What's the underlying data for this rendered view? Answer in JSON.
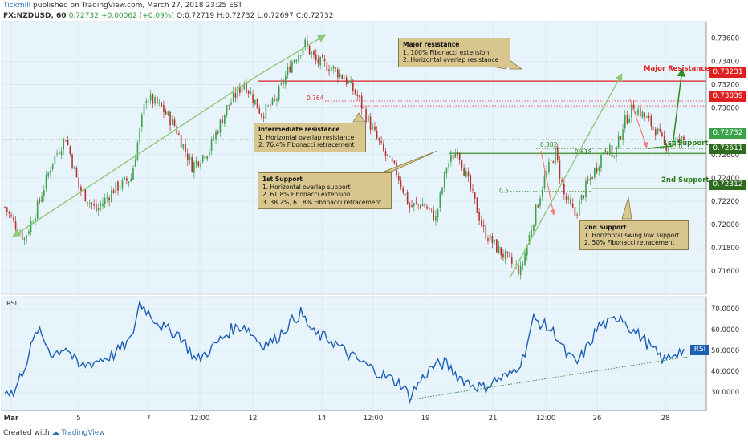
{
  "header": {
    "author": "Tickmill",
    "published": "published on TradingView.com, March 27, 2018 23:25 EST",
    "symbol": "FX:NZDUSD, 60",
    "last": "0.72732",
    "change": "+0.00062 (+0.09%)",
    "open": "O:0.72719",
    "high": "H:0.72732",
    "low": "L:0.72697",
    "close": "C:0.72732"
  },
  "footer": {
    "created_with": "Created with",
    "brand": "TradingView"
  },
  "colors": {
    "background": "#e8f4fb",
    "candle_up": "#3aa24a",
    "candle_down": "#b3342f",
    "rsi_line": "#1f5fb5",
    "resistance": "#e02020",
    "support": "#3c8c28",
    "trend": "#8fc97a",
    "annotation_box": "#d8c68e"
  },
  "annotations": {
    "major_res_box": {
      "title": "Major resistance",
      "lines": [
        "1. 100% Fibonacci extension",
        "2. Horizontal overlap resistance"
      ]
    },
    "intermediate_box": {
      "title": "Intermediate resistance",
      "lines": [
        "1. Horizontal overlap resistance",
        "2. 76.4% Fibonacci retracement"
      ]
    },
    "first_support_box": {
      "title": "1st Support",
      "lines": [
        "1. Horizontal overlap support",
        "2. 61.8% Fibonacci extension",
        "3. 38.2%, 61.8% Fibonacci retracement"
      ]
    },
    "second_support_box": {
      "title": "2nd Support",
      "lines": [
        "1. Horizontal swing low support",
        "2. 50% Fibonacci retracement"
      ]
    }
  },
  "levels": {
    "major_resistance": {
      "label": "Major Resistance",
      "price": "0.73231"
    },
    "intermediate_resistance": {
      "price": "0.73039"
    },
    "current": {
      "price": "0.72732"
    },
    "first_support": {
      "label": "1st Support",
      "price": "0.72611"
    },
    "second_support": {
      "label": "2nd Support",
      "price": "0.72312"
    }
  },
  "fib_labels": {
    "f764": "0.764",
    "f382": "0.382",
    "f618": "0.618",
    "f5": "0.5"
  },
  "rsi_label": "RSI",
  "rsi_badge": "RSI",
  "chart_data": [
    {
      "type": "candlestick",
      "title": "FX:NZDUSD, 60",
      "x_ticks": [
        "Mar",
        "5",
        "7",
        "12:00",
        "12",
        "14",
        "12:00",
        "19",
        "21",
        "12:00",
        "26",
        "28"
      ],
      "ylim": [
        0.7145,
        0.7372
      ],
      "y_ticks": [
        "0.73600",
        "0.73400",
        "0.73200",
        "0.73000",
        "0.72800",
        "0.72600",
        "0.72400",
        "0.72200",
        "0.72000",
        "0.71800",
        "0.71600"
      ],
      "anchors": [
        [
          0,
          0.7215
        ],
        [
          3,
          0.7205
        ],
        [
          9,
          0.7188
        ],
        [
          15,
          0.7215
        ],
        [
          22,
          0.7255
        ],
        [
          28,
          0.7275
        ],
        [
          34,
          0.7232
        ],
        [
          42,
          0.7212
        ],
        [
          50,
          0.723
        ],
        [
          58,
          0.724
        ],
        [
          65,
          0.731
        ],
        [
          72,
          0.73
        ],
        [
          78,
          0.7285
        ],
        [
          86,
          0.725
        ],
        [
          94,
          0.7265
        ],
        [
          102,
          0.73
        ],
        [
          110,
          0.7322
        ],
        [
          118,
          0.7295
        ],
        [
          124,
          0.7305
        ],
        [
          132,
          0.734
        ],
        [
          138,
          0.7355
        ],
        [
          143,
          0.734
        ],
        [
          150,
          0.7335
        ],
        [
          156,
          0.7326
        ],
        [
          162,
          0.731
        ],
        [
          168,
          0.7285
        ],
        [
          174,
          0.7262
        ],
        [
          180,
          0.7245
        ],
        [
          186,
          0.7215
        ],
        [
          192,
          0.7218
        ],
        [
          198,
          0.7205
        ],
        [
          203,
          0.725
        ],
        [
          208,
          0.7265
        ],
        [
          214,
          0.723
        ],
        [
          220,
          0.7195
        ],
        [
          226,
          0.718
        ],
        [
          232,
          0.7168
        ],
        [
          237,
          0.716
        ],
        [
          243,
          0.7205
        ],
        [
          248,
          0.724
        ],
        [
          253,
          0.7262
        ],
        [
          257,
          0.7225
        ],
        [
          262,
          0.7208
        ],
        [
          267,
          0.7232
        ],
        [
          272,
          0.725
        ],
        [
          276,
          0.7268
        ],
        [
          280,
          0.7258
        ],
        [
          284,
          0.7285
        ],
        [
          289,
          0.7302
        ],
        [
          294,
          0.7292
        ],
        [
          299,
          0.7282
        ],
        [
          303,
          0.7268
        ],
        [
          308,
          0.727
        ],
        [
          312,
          0.7273
        ]
      ],
      "n_candles": 313,
      "annotations": [
        "0.764",
        "0.382",
        "0.618",
        "0.5",
        "Major Resistance",
        "1st Support",
        "2nd Support"
      ]
    },
    {
      "type": "line",
      "title": "RSI",
      "ylim": [
        22,
        75
      ],
      "y_ticks": [
        "70.0000",
        "60.0000",
        "50.0000",
        "40.0000",
        "30.0000"
      ],
      "anchors": [
        [
          0,
          32
        ],
        [
          4,
          29
        ],
        [
          10,
          45
        ],
        [
          15,
          60
        ],
        [
          22,
          48
        ],
        [
          28,
          52
        ],
        [
          34,
          42
        ],
        [
          42,
          45
        ],
        [
          50,
          48
        ],
        [
          58,
          55
        ],
        [
          62,
          73
        ],
        [
          68,
          66
        ],
        [
          74,
          60
        ],
        [
          80,
          58
        ],
        [
          88,
          45
        ],
        [
          96,
          52
        ],
        [
          104,
          60
        ],
        [
          110,
          62
        ],
        [
          118,
          53
        ],
        [
          124,
          55
        ],
        [
          130,
          62
        ],
        [
          136,
          68
        ],
        [
          142,
          58
        ],
        [
          150,
          55
        ],
        [
          158,
          48
        ],
        [
          166,
          43
        ],
        [
          174,
          38
        ],
        [
          182,
          34
        ],
        [
          186,
          28
        ],
        [
          190,
          34
        ],
        [
          196,
          42
        ],
        [
          202,
          44
        ],
        [
          208,
          38
        ],
        [
          214,
          34
        ],
        [
          220,
          32
        ],
        [
          226,
          36
        ],
        [
          232,
          38
        ],
        [
          238,
          46
        ],
        [
          243,
          65
        ],
        [
          248,
          62
        ],
        [
          253,
          58
        ],
        [
          258,
          48
        ],
        [
          263,
          44
        ],
        [
          268,
          52
        ],
        [
          273,
          62
        ],
        [
          278,
          63
        ],
        [
          283,
          67
        ],
        [
          288,
          60
        ],
        [
          293,
          56
        ],
        [
          298,
          50
        ],
        [
          303,
          45
        ],
        [
          308,
          49
        ],
        [
          312,
          50
        ]
      ],
      "n_points": 313
    }
  ]
}
